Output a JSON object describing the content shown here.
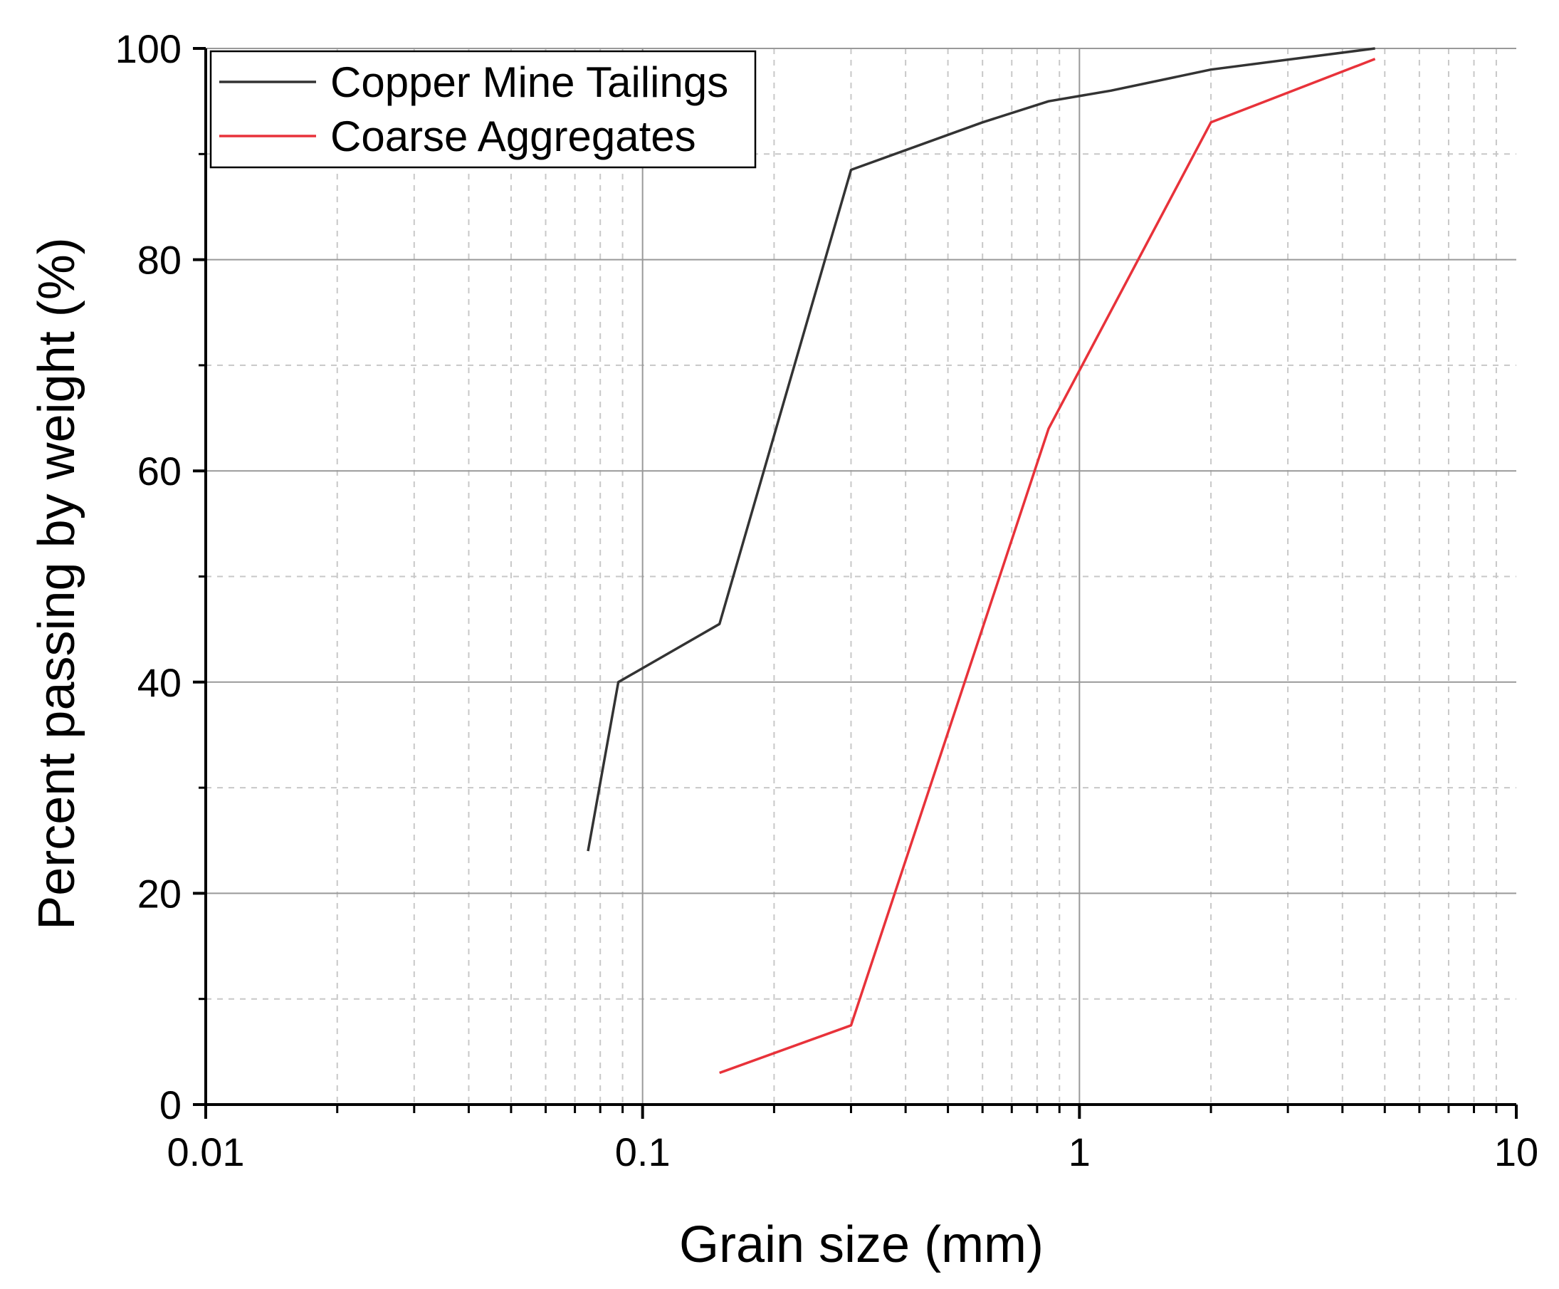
{
  "chart_data": {
    "type": "line",
    "title": "",
    "xlabel": "Grain size  (mm)",
    "ylabel": "Percent passing by weight (%)",
    "xscale": "log",
    "xlim": [
      0.01,
      10
    ],
    "ylim": [
      0,
      100
    ],
    "x_ticks": [
      {
        "value": 0.01,
        "label": "0.01"
      },
      {
        "value": 0.1,
        "label": "0.1"
      },
      {
        "value": 1,
        "label": "1"
      },
      {
        "value": 10,
        "label": "10"
      }
    ],
    "y_ticks": [
      {
        "value": 0,
        "label": "0"
      },
      {
        "value": 20,
        "label": "20"
      },
      {
        "value": 40,
        "label": "40"
      },
      {
        "value": 60,
        "label": "60"
      },
      {
        "value": 80,
        "label": "80"
      },
      {
        "value": 100,
        "label": "100"
      }
    ],
    "grid": true,
    "legend_position": "top-left",
    "series": [
      {
        "name": "Copper Mine Tailings",
        "color": "#333333",
        "x": [
          0.075,
          0.088,
          0.15,
          0.3,
          0.6,
          0.85,
          1.18,
          2.0,
          4.75
        ],
        "y": [
          24,
          40,
          45.5,
          88.5,
          93,
          95,
          96,
          98,
          100
        ]
      },
      {
        "name": "Coarse Aggregates",
        "color": "#e8323a",
        "x": [
          0.15,
          0.3,
          0.85,
          1.0,
          2.0,
          4.75
        ],
        "y": [
          3,
          7.5,
          64,
          69.5,
          93,
          99
        ]
      }
    ]
  }
}
